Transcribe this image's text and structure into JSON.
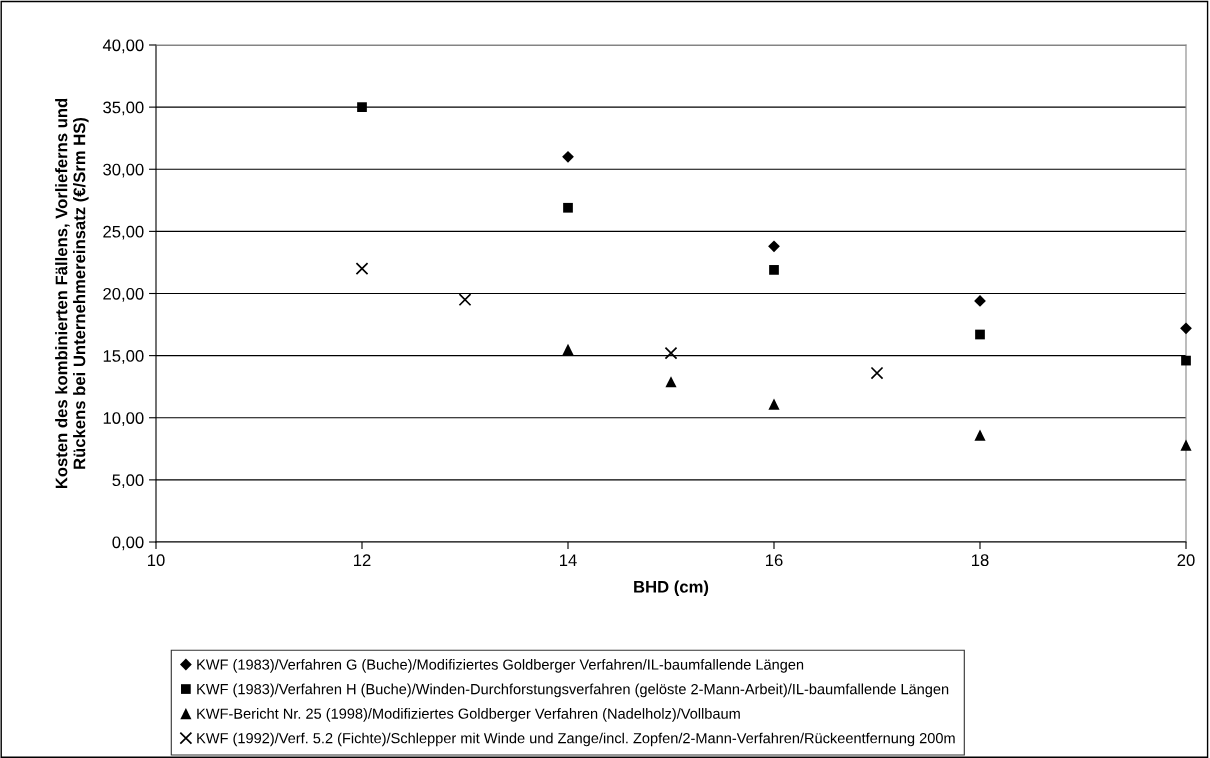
{
  "chart_data": {
    "type": "scatter",
    "xlabel": "BHD (cm)",
    "ylabel": "Kosten des kombinierten Fällens, Vorlieferns und\nRückens bei Unternehmereinsatz (€/Srm HS)",
    "xlim": [
      10,
      20
    ],
    "xticks": [
      10,
      12,
      14,
      16,
      18,
      20
    ],
    "ylim": [
      0,
      40
    ],
    "yticks": [
      {
        "value": 0,
        "label": "0,00"
      },
      {
        "value": 5,
        "label": "5,00"
      },
      {
        "value": 10,
        "label": "10,00"
      },
      {
        "value": 15,
        "label": "15,00"
      },
      {
        "value": 20,
        "label": "20,00"
      },
      {
        "value": 25,
        "label": "25,00"
      },
      {
        "value": 30,
        "label": "30,00"
      },
      {
        "value": 35,
        "label": "35,00"
      },
      {
        "value": 40,
        "label": "40,00"
      }
    ],
    "grid": "y",
    "legend": "bottom",
    "series": [
      {
        "name": "KWF (1983)/Verfahren G (Buche)/Modifiziertes Goldberger Verfahren/IL-baumfallende Längen",
        "color": "#000000",
        "marker": "diamond",
        "x": [
          14,
          16,
          18,
          20
        ],
        "values": [
          31.0,
          23.8,
          19.4,
          17.2
        ]
      },
      {
        "name": "KWF (1983)/Verfahren H (Buche)/Winden-Durchforstungsverfahren (gelöste 2-Mann-Arbeit)/IL-baumfallende Längen",
        "color": "#000000",
        "marker": "square",
        "x": [
          12,
          14,
          16,
          18,
          20
        ],
        "values": [
          35.0,
          26.9,
          21.9,
          16.7,
          14.6
        ]
      },
      {
        "name": "KWF-Bericht Nr. 25 (1998)/Modifiziertes Goldberger Verfahren (Nadelholz)/Vollbaum",
        "color": "#000000",
        "marker": "triangle",
        "x": [
          14,
          15,
          16,
          18,
          20
        ],
        "values": [
          15.5,
          12.9,
          11.1,
          8.6,
          7.8
        ]
      },
      {
        "name": "KWF (1992)/Verf. 5.2 (Fichte)/Schlepper mit Winde und Zange/incl. Zopfen/2-Mann-Verfahren/Rückeentfernung 200m",
        "color": "#000000",
        "marker": "cross",
        "x": [
          12,
          13,
          15,
          17
        ],
        "values": [
          22.0,
          19.5,
          15.2,
          13.6
        ]
      }
    ]
  }
}
